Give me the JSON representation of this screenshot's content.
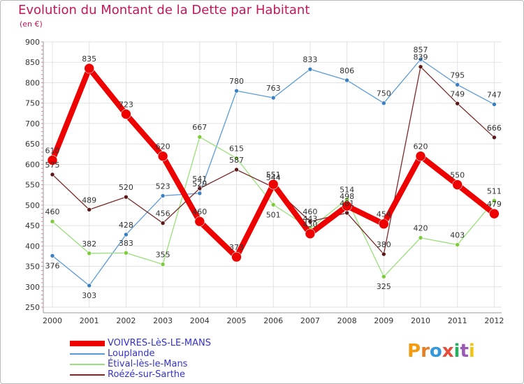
{
  "title": "Evolution du Montant de la Dette par Habitant",
  "subtitle": "(en €)",
  "logo": {
    "text": "Proxiti",
    "colors": [
      "#f39c12",
      "#e67e22",
      "#3498db",
      "#e74c3c",
      "#27ae60",
      "#9b59b6",
      "#f1c40f"
    ]
  },
  "chart_data": {
    "type": "line",
    "x": [
      "2000",
      "2001",
      "2002",
      "2003",
      "2004",
      "2005",
      "2006",
      "2007",
      "2008",
      "2009",
      "2010",
      "2011",
      "2012"
    ],
    "ylim": [
      250,
      900
    ],
    "yticks": [
      250,
      300,
      350,
      400,
      450,
      500,
      550,
      600,
      650,
      700,
      750,
      800,
      850,
      900
    ],
    "grid": true,
    "legend": "bottom-left",
    "series": [
      {
        "name": "Louplande",
        "color": "#5b9bd5",
        "width": 1.3,
        "values": [
          376,
          303,
          428,
          523,
          529,
          780,
          763,
          833,
          806,
          750,
          857,
          795,
          747
        ],
        "labels": [
          "376",
          "303",
          "428",
          "523",
          "529",
          "780",
          "763",
          "833",
          "806",
          "750",
          "857",
          "795",
          "747"
        ]
      },
      {
        "name": "Étival-lès-le-Mans",
        "color": "#99e07a",
        "width": 1.3,
        "values": [
          460,
          382,
          383,
          355,
          667,
          615,
          501,
          443,
          514,
          325,
          420,
          403,
          511
        ],
        "labels": [
          "460",
          "382",
          "383",
          "355",
          "667",
          "615",
          "501",
          "443",
          "514",
          "325",
          "420",
          "403",
          "511"
        ]
      },
      {
        "name": "Roézé-sur-Sarthe",
        "color": "#7b2a2a",
        "width": 1.3,
        "values": [
          575,
          489,
          520,
          456,
          541,
          587,
          544,
          460,
          481,
          380,
          839,
          749,
          666
        ],
        "labels": [
          "575",
          "489",
          "520",
          "456",
          "541",
          "587",
          "544",
          "460",
          "481",
          "380",
          "839",
          "749",
          "666"
        ]
      },
      {
        "name": "VOIVRES-LèS-LE-MANS",
        "color": "#ee0000",
        "width": 8,
        "values": [
          610,
          835,
          723,
          620,
          460,
          373,
          551,
          430,
          498,
          454,
          620,
          550,
          479
        ],
        "labels": [
          "610",
          "835",
          "723",
          "620",
          "460",
          "373",
          "551",
          "430",
          "498",
          "454",
          "620",
          "550",
          "479"
        ]
      }
    ]
  },
  "legend_items": [
    {
      "name": "VOIVRES-LèS-LE-MANS",
      "color": "#ee0000",
      "text_color": "#3333cc"
    },
    {
      "name": "Louplande",
      "color": "#5b9bd5",
      "text_color": "#3333cc"
    },
    {
      "name": "Étival-lès-le-Mans",
      "color": "#99e07a",
      "text_color": "#3333cc"
    },
    {
      "name": "Roézé-sur-Sarthe",
      "color": "#7b2a2a",
      "text_color": "#3333cc"
    }
  ]
}
